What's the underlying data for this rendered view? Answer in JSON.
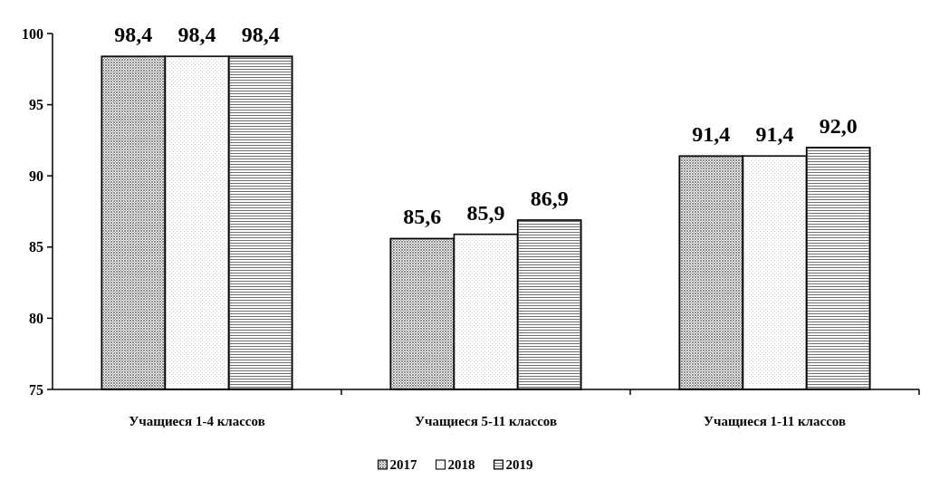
{
  "chart_data": {
    "type": "bar",
    "categories": [
      "Учащиеся 1-4 классов",
      "Учащиеся 5-11 классов",
      "Учащиеся 1-11 классов"
    ],
    "series": [
      {
        "name": "2017",
        "color": "#8c8c8c",
        "values": [
          98.4,
          85.6,
          91.4
        ],
        "value_labels": [
          "98,4",
          "85,6",
          "91,4"
        ]
      },
      {
        "name": "2018",
        "color": "#d8d8d8",
        "values": [
          98.4,
          85.9,
          91.4
        ],
        "value_labels": [
          "98,4",
          "85,9",
          "91,4"
        ]
      },
      {
        "name": "2019",
        "color": "#6e6e6e",
        "values": [
          98.4,
          86.9,
          92.0
        ],
        "value_labels": [
          "98,4",
          "86,9",
          "92,0"
        ]
      }
    ],
    "ylim": [
      75,
      100
    ],
    "yticks": [
      75,
      80,
      85,
      90,
      95,
      100
    ],
    "grid": false,
    "legend": "bottom"
  }
}
